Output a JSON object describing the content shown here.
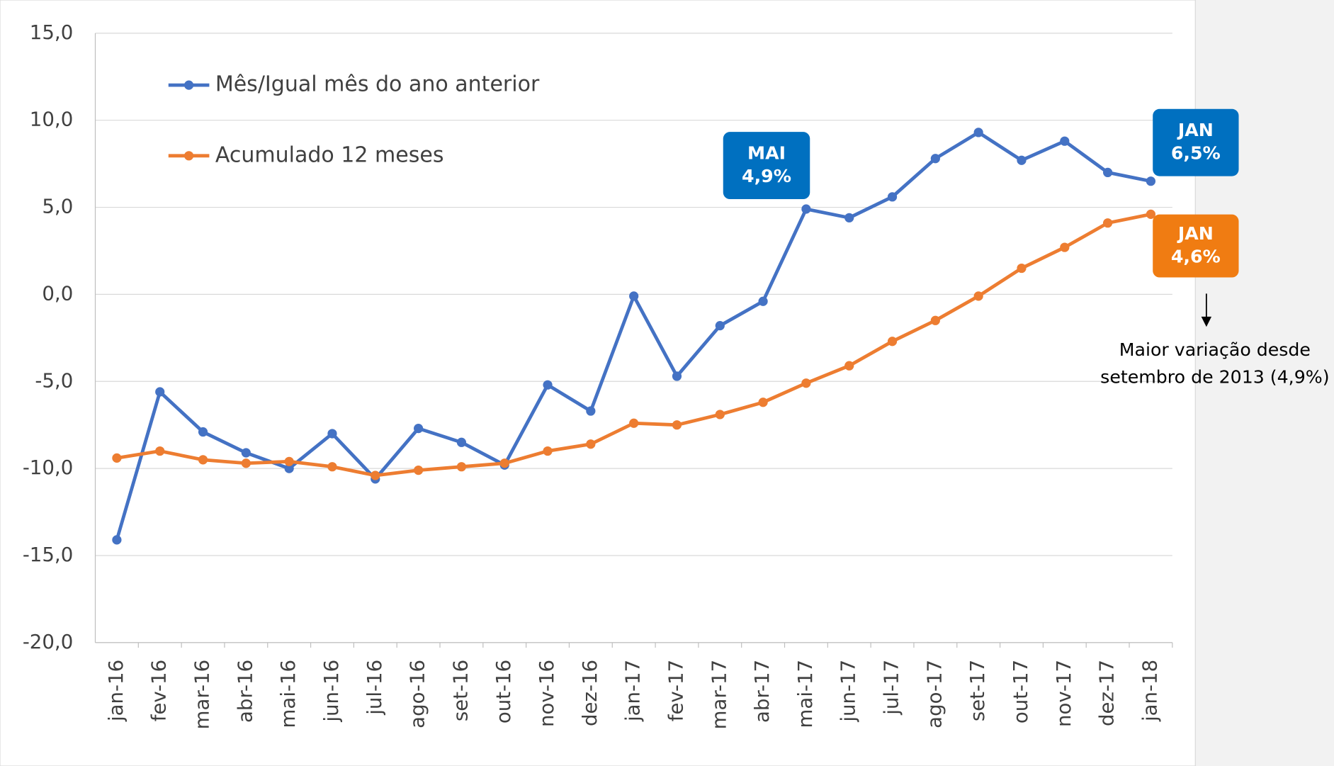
{
  "chart_data": {
    "type": "line",
    "categories": [
      "jan-16",
      "fev-16",
      "mar-16",
      "abr-16",
      "mai-16",
      "jun-16",
      "jul-16",
      "ago-16",
      "set-16",
      "out-16",
      "nov-16",
      "dez-16",
      "jan-17",
      "fev-17",
      "mar-17",
      "abr-17",
      "mai-17",
      "jun-17",
      "jul-17",
      "ago-17",
      "set-17",
      "out-17",
      "nov-17",
      "dez-17",
      "jan-18"
    ],
    "series": [
      {
        "name": "Mês/Igual mês do ano anterior",
        "color": "#4472c4",
        "values": [
          -14.1,
          -5.6,
          -7.9,
          -9.1,
          -10.0,
          -8.0,
          -10.6,
          -7.7,
          -8.5,
          -9.8,
          -5.2,
          -6.7,
          -0.1,
          -4.7,
          -1.8,
          -0.4,
          4.9,
          4.4,
          5.6,
          7.8,
          9.3,
          7.7,
          8.8,
          7.0,
          6.5
        ]
      },
      {
        "name": "Acumulado 12 meses",
        "color": "#ed7d31",
        "values": [
          -9.4,
          -9.0,
          -9.5,
          -9.7,
          -9.6,
          -9.9,
          -10.4,
          -10.1,
          -9.9,
          -9.7,
          -9.0,
          -8.6,
          -7.4,
          -7.5,
          -6.9,
          -6.2,
          -5.1,
          -4.1,
          -2.7,
          -1.5,
          -0.1,
          1.5,
          2.7,
          4.1,
          4.6
        ]
      }
    ],
    "ylim": [
      -20,
      15
    ],
    "yticks": [
      {
        "value": -20,
        "label": "-20,0"
      },
      {
        "value": -15,
        "label": "-15,0"
      },
      {
        "value": -10,
        "label": "-10,0"
      },
      {
        "value": -5,
        "label": "-5,0"
      },
      {
        "value": 0,
        "label": "0,0"
      },
      {
        "value": 5,
        "label": "5,0"
      },
      {
        "value": 10,
        "label": "10,0"
      },
      {
        "value": 15,
        "label": "15,0"
      }
    ],
    "grid": true,
    "legend": "upper left",
    "annotations": [
      {
        "lines": [
          "MAI",
          "4,9%"
        ],
        "color": "#0070c0"
      },
      {
        "lines": [
          "JAN",
          "6,5%"
        ],
        "color": "#0070c0"
      },
      {
        "lines": [
          "JAN",
          "4,6%"
        ],
        "color": "#f07c12"
      },
      {
        "lines": [
          "Maior variação desde",
          "setembro de 2013 (4,9%)"
        ]
      }
    ]
  }
}
